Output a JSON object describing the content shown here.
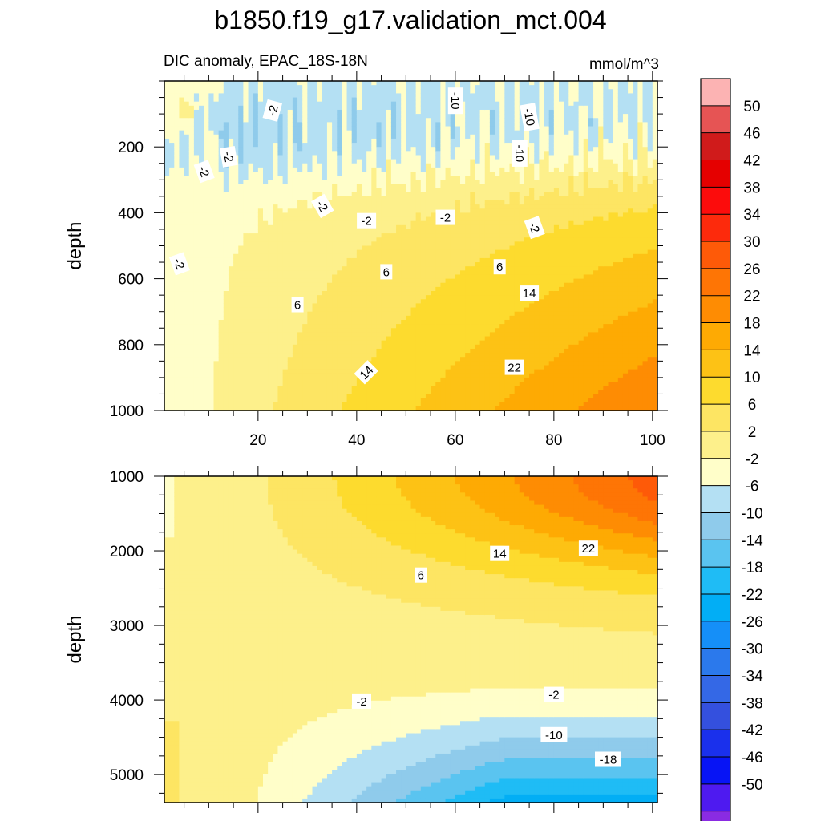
{
  "figure": {
    "title": "b1850.f19_g17.validation_mct.004",
    "subtitle_left": "DIC anomaly, EPAC_18S-18N",
    "subtitle_right": "mmol/m^3"
  },
  "chart_data": [
    {
      "type": "heatmap",
      "panel": "upper",
      "plot_style": "filled contour",
      "title": "DIC anomaly, EPAC_18S-18N",
      "units": "mmol/m^3",
      "xlabel": "",
      "ylabel": "depth",
      "xlim": [
        1,
        101
      ],
      "ylim": [
        1000,
        0
      ],
      "y_inverted": true,
      "xticks": [
        20,
        40,
        60,
        80,
        100
      ],
      "yticks": [
        200,
        400,
        600,
        800,
        1000
      ],
      "grid": false,
      "contour_labels": [
        {
          "text": "-2",
          "x": 23,
          "y": 90,
          "angle": -75
        },
        {
          "text": "-10",
          "x": 60,
          "y": 60,
          "angle": 90
        },
        {
          "text": "-10",
          "x": 75,
          "y": 110,
          "angle": 80
        },
        {
          "text": "-10",
          "x": 73,
          "y": 220,
          "angle": 90
        },
        {
          "text": "-2",
          "x": 14,
          "y": 230,
          "angle": 80
        },
        {
          "text": "-2",
          "x": 9,
          "y": 275,
          "angle": 70
        },
        {
          "text": "-2",
          "x": 33,
          "y": 380,
          "angle": 60
        },
        {
          "text": "-2",
          "x": 42,
          "y": 425,
          "angle": 0
        },
        {
          "text": "-2",
          "x": 58,
          "y": 415,
          "angle": 0
        },
        {
          "text": "-2",
          "x": 76,
          "y": 445,
          "angle": 70
        },
        {
          "text": "-2",
          "x": 4,
          "y": 555,
          "angle": 70
        },
        {
          "text": "6",
          "x": 46,
          "y": 580,
          "angle": 0
        },
        {
          "text": "6",
          "x": 69,
          "y": 565,
          "angle": 0
        },
        {
          "text": "6",
          "x": 28,
          "y": 680,
          "angle": 0
        },
        {
          "text": "14",
          "x": 75,
          "y": 645,
          "angle": 0
        },
        {
          "text": "14",
          "x": 42,
          "y": 885,
          "angle": -45
        },
        {
          "text": "22",
          "x": 72,
          "y": 870,
          "angle": 0
        }
      ]
    },
    {
      "type": "heatmap",
      "panel": "lower",
      "plot_style": "filled contour",
      "xlabel": "",
      "ylabel": "depth",
      "xlim": [
        1,
        101
      ],
      "ylim": [
        5375,
        1000
      ],
      "y_inverted": true,
      "xticks": [
        20,
        40,
        60,
        80,
        100
      ],
      "yticks": [
        1000,
        2000,
        3000,
        4000,
        5000
      ],
      "grid": false,
      "contour_labels": [
        {
          "text": "14",
          "x": 69,
          "y": 2040,
          "angle": 0
        },
        {
          "text": "22",
          "x": 87,
          "y": 1970,
          "angle": 0
        },
        {
          "text": "6",
          "x": 53,
          "y": 2330,
          "angle": 0
        },
        {
          "text": "-2",
          "x": 41,
          "y": 4020,
          "angle": 0
        },
        {
          "text": "-2",
          "x": 80,
          "y": 3930,
          "angle": 0
        },
        {
          "text": "-10",
          "x": 80,
          "y": 4470,
          "angle": 0
        },
        {
          "text": "-18",
          "x": 91,
          "y": 4800,
          "angle": 0
        }
      ]
    }
  ],
  "colorbar": {
    "labels": [
      "50",
      "46",
      "42",
      "38",
      "34",
      "30",
      "26",
      "22",
      "18",
      "14",
      "10",
      "6",
      "2",
      "-2",
      "-6",
      "-10",
      "-14",
      "-18",
      "-22",
      "-26",
      "-30",
      "-34",
      "-38",
      "-42",
      "-46",
      "-50"
    ],
    "colors_top_to_bottom": [
      "#fcb3b3",
      "#e65454",
      "#d01b1b",
      "#e50000",
      "#fc0c0c",
      "#fd2a0c",
      "#fe5a08",
      "#fe7505",
      "#fe8c03",
      "#feaa03",
      "#fdc215",
      "#fddb2e",
      "#fde563",
      "#fdf08b",
      "#fffec9",
      "#b4e0f3",
      "#8fcbeb",
      "#5ac4f0",
      "#1fbcf5",
      "#02aef5",
      "#158ff8",
      "#2b79ec",
      "#3468e6",
      "#3450de",
      "#1a30ec",
      "#0714f5",
      "#4e1af0",
      "#8a2be2"
    ]
  }
}
